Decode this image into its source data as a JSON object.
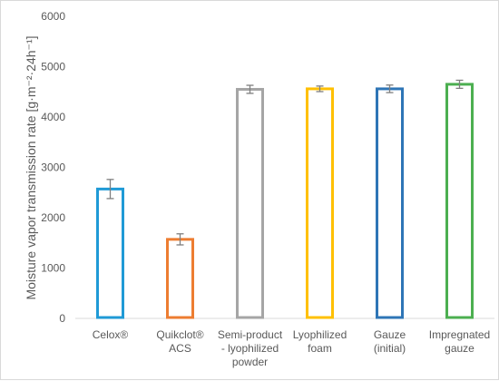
{
  "chart_data": {
    "type": "bar",
    "title": "",
    "xlabel": "",
    "ylabel": "Moisture vapor transmission rate [g·m⁻²·24h⁻¹]",
    "ylim": [
      0,
      6000
    ],
    "yticks": [
      0,
      1000,
      2000,
      3000,
      4000,
      5000,
      6000
    ],
    "grid": false,
    "legend": "none",
    "bar_style": "outlined",
    "categories": [
      [
        "Celox®"
      ],
      [
        "Quikclot®",
        "ACS"
      ],
      [
        "Semi-product",
        "- lyophilized",
        "powder"
      ],
      [
        "Lyophilized",
        "foam"
      ],
      [
        "Gauze",
        "(initial)"
      ],
      [
        "Impregnated",
        "gauze"
      ]
    ],
    "values": [
      2570,
      1570,
      4550,
      4560,
      4560,
      4650
    ],
    "errors": [
      190,
      110,
      80,
      55,
      75,
      80
    ],
    "colors": [
      "#1f9ad6",
      "#ed7d31",
      "#a5a5a5",
      "#ffc000",
      "#2e75b6",
      "#4caf50"
    ],
    "error_bar_color": "#7f7f7f"
  }
}
